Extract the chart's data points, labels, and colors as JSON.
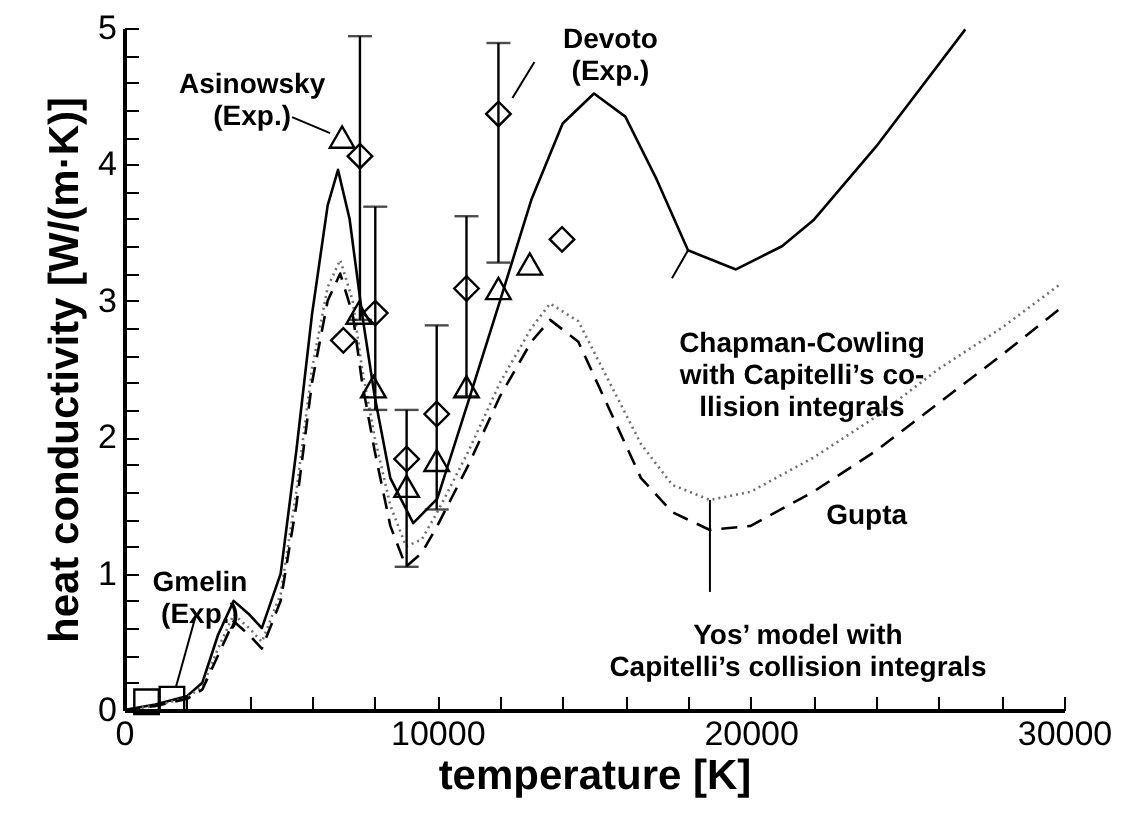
{
  "chart_data": {
    "type": "line",
    "xlabel": "temperature [K]",
    "ylabel": "heat conductivity [W/(m·K)]",
    "xlim": [
      0,
      30000
    ],
    "ylim": [
      0,
      5
    ],
    "xticks": [
      0,
      {
        "value": 2000,
        "label": null
      },
      {
        "value": 4000,
        "label": null
      },
      {
        "value": 6000,
        "label": null
      },
      {
        "value": 8000,
        "label": null
      },
      10000,
      {
        "value": 12000,
        "label": null
      },
      {
        "value": 14000,
        "label": null
      },
      {
        "value": 16000,
        "label": null
      },
      {
        "value": 18000,
        "label": null
      },
      20000,
      {
        "value": 22000,
        "label": null
      },
      {
        "value": 24000,
        "label": null
      },
      {
        "value": 26000,
        "label": null
      },
      {
        "value": 28000,
        "label": null
      },
      30000
    ],
    "yticks": [
      0,
      {
        "value": 0.2,
        "label": null
      },
      {
        "value": 0.4,
        "label": null
      },
      {
        "value": 0.6,
        "label": null
      },
      {
        "value": 0.8,
        "label": null
      },
      1,
      {
        "value": 1.2,
        "label": null
      },
      {
        "value": 1.4,
        "label": null
      },
      {
        "value": 1.6,
        "label": null
      },
      {
        "value": 1.8,
        "label": null
      },
      2,
      {
        "value": 2.2,
        "label": null
      },
      {
        "value": 2.4,
        "label": null
      },
      {
        "value": 2.6,
        "label": null
      },
      {
        "value": 2.8,
        "label": null
      },
      3,
      {
        "value": 3.2,
        "label": null
      },
      {
        "value": 3.4,
        "label": null
      },
      {
        "value": 3.6,
        "label": null
      },
      {
        "value": 3.8,
        "label": null
      },
      4,
      {
        "value": 4.2,
        "label": null
      },
      {
        "value": 4.4,
        "label": null
      },
      {
        "value": 4.6,
        "label": null
      },
      {
        "value": 4.8,
        "label": null
      },
      5
    ],
    "series": [
      {
        "type": "line",
        "line_style": "solid",
        "color": "#000000",
        "x": [
          0,
          1000,
          2000,
          2500,
          3000,
          3500,
          4000,
          4400,
          5000,
          5500,
          6000,
          6500,
          6830,
          7200,
          7600,
          8000,
          8500,
          9230,
          10000,
          11000,
          12000,
          13000,
          14000,
          15000,
          16000,
          17000,
          18000,
          19530,
          21000,
          22000,
          24000,
          26850
        ],
        "values": [
          0,
          0.04,
          0.1,
          0.2,
          0.55,
          0.8,
          0.7,
          0.6,
          1.0,
          1.9,
          2.9,
          3.7,
          3.96,
          3.6,
          2.9,
          2.3,
          1.7,
          1.37,
          1.55,
          2.27,
          3.0,
          3.74,
          4.3,
          4.52,
          4.35,
          3.89,
          3.37,
          3.23,
          3.4,
          3.59,
          4.13,
          4.99
        ]
      },
      {
        "type": "line",
        "line_style": "dotted",
        "color": "#707070",
        "x": [
          0,
          1000,
          2000,
          2500,
          3000,
          3500,
          4000,
          4400,
          5000,
          5500,
          6000,
          6500,
          6900,
          7300,
          7600,
          8000,
          8500,
          9000,
          9500,
          10000,
          11000,
          12000,
          13000,
          13600,
          14500,
          15500,
          16500,
          17500,
          18700,
          20000,
          22000,
          24000,
          26000,
          28000,
          29870
        ],
        "values": [
          0,
          0.03,
          0.09,
          0.17,
          0.45,
          0.7,
          0.6,
          0.5,
          0.85,
          1.6,
          2.5,
          3.1,
          3.3,
          3.0,
          2.5,
          2.0,
          1.5,
          1.2,
          1.25,
          1.45,
          1.9,
          2.4,
          2.8,
          2.98,
          2.85,
          2.4,
          1.95,
          1.65,
          1.54,
          1.6,
          1.85,
          2.15,
          2.5,
          2.8,
          3.12
        ]
      },
      {
        "type": "line",
        "line_style": "dashed",
        "color": "#000000",
        "x": [
          0,
          1000,
          2000,
          2500,
          3000,
          3500,
          4000,
          4400,
          5000,
          5500,
          6000,
          6500,
          6900,
          7300,
          7600,
          8000,
          8500,
          9000,
          9500,
          10000,
          11000,
          12000,
          13000,
          13600,
          14500,
          15500,
          16500,
          17500,
          18700,
          20000,
          22000,
          24000,
          26000,
          28000,
          29970
        ],
        "values": [
          0,
          0.03,
          0.08,
          0.15,
          0.4,
          0.65,
          0.55,
          0.45,
          0.8,
          1.5,
          2.4,
          3.0,
          3.2,
          2.9,
          2.4,
          1.9,
          1.35,
          1.05,
          1.15,
          1.35,
          1.8,
          2.3,
          2.7,
          2.86,
          2.7,
          2.2,
          1.7,
          1.45,
          1.32,
          1.35,
          1.6,
          1.9,
          2.25,
          2.6,
          2.96
        ]
      },
      {
        "type": "scatter",
        "marker": "triangle",
        "color": "#000000",
        "x": [
          6960,
          7490,
          7960,
          9020,
          9980,
          10930,
          11950,
          12950
        ],
        "values": [
          4.2,
          2.91,
          2.37,
          1.64,
          1.83,
          2.37,
          3.09,
          3.27
        ],
        "errors": [
          null,
          null,
          null,
          [
            1.05,
            2.2
          ],
          null,
          null,
          null,
          null
        ]
      },
      {
        "type": "scatter",
        "marker": "diamond",
        "color": "#000000",
        "x": [
          7000,
          7530,
          8020,
          9020,
          9980,
          10930,
          11950,
          13980
        ],
        "values": [
          2.71,
          4.06,
          2.91,
          1.84,
          2.17,
          3.09,
          4.37,
          3.45
        ],
        "errors": [
          null,
          [
            2.86,
            4.94
          ],
          [
            2.2,
            3.69
          ],
          null,
          [
            1.47,
            2.82
          ],
          [
            2.3,
            3.62
          ],
          [
            3.28,
            4.89
          ],
          null
        ]
      },
      {
        "type": "scatter",
        "marker": "square",
        "color": "#000000",
        "x": [
          720,
          1530
        ],
        "values": [
          0.06,
          0.08
        ]
      }
    ],
    "annotations": [
      {
        "text": "Asinowsky\n(Exp.)",
        "x": 6960,
        "y": 4.2
      },
      {
        "text": "Devoto\n(Exp.)",
        "x": 11950,
        "y": 4.37
      },
      {
        "text": "Gmelin\n(Exp.)",
        "x": 1530,
        "y": 0.08
      },
      {
        "text": "Chapman-Cowling\nwith Capitelli’s co-\nllision integrals",
        "x": 18000,
        "y": 3.37
      },
      {
        "text": "Gupta",
        "x": 20000,
        "y": 1.35
      },
      {
        "text": "Yos’ model with\nCapitelli’s collision integrals",
        "x": 18700,
        "y": 1.54
      }
    ]
  }
}
